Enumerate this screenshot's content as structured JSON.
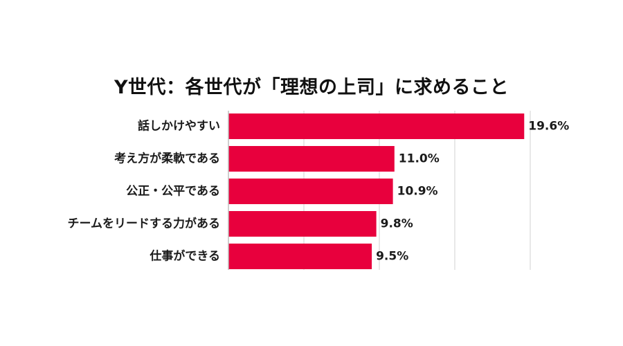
{
  "chart_data": {
    "type": "bar",
    "orientation": "horizontal",
    "title": "Y世代：各世代が「理想の上司」に求めること",
    "categories": [
      "話しかけやすい",
      "考え方が柔軟である",
      "公正・公平である",
      "チームをリードする力がある",
      "仕事ができる"
    ],
    "values": [
      19.6,
      11.0,
      10.9,
      9.8,
      9.5
    ],
    "value_labels": [
      "19.6%",
      "11.0%",
      "10.9%",
      "9.8%",
      "9.5%"
    ],
    "xlim": [
      0,
      20
    ],
    "gridlines": [
      5,
      10,
      15,
      20
    ],
    "grid": true,
    "bar_color": "#e8003d",
    "grid_color": "#d0d0d0",
    "axis_color": "#bfbfbf",
    "legend": false
  }
}
